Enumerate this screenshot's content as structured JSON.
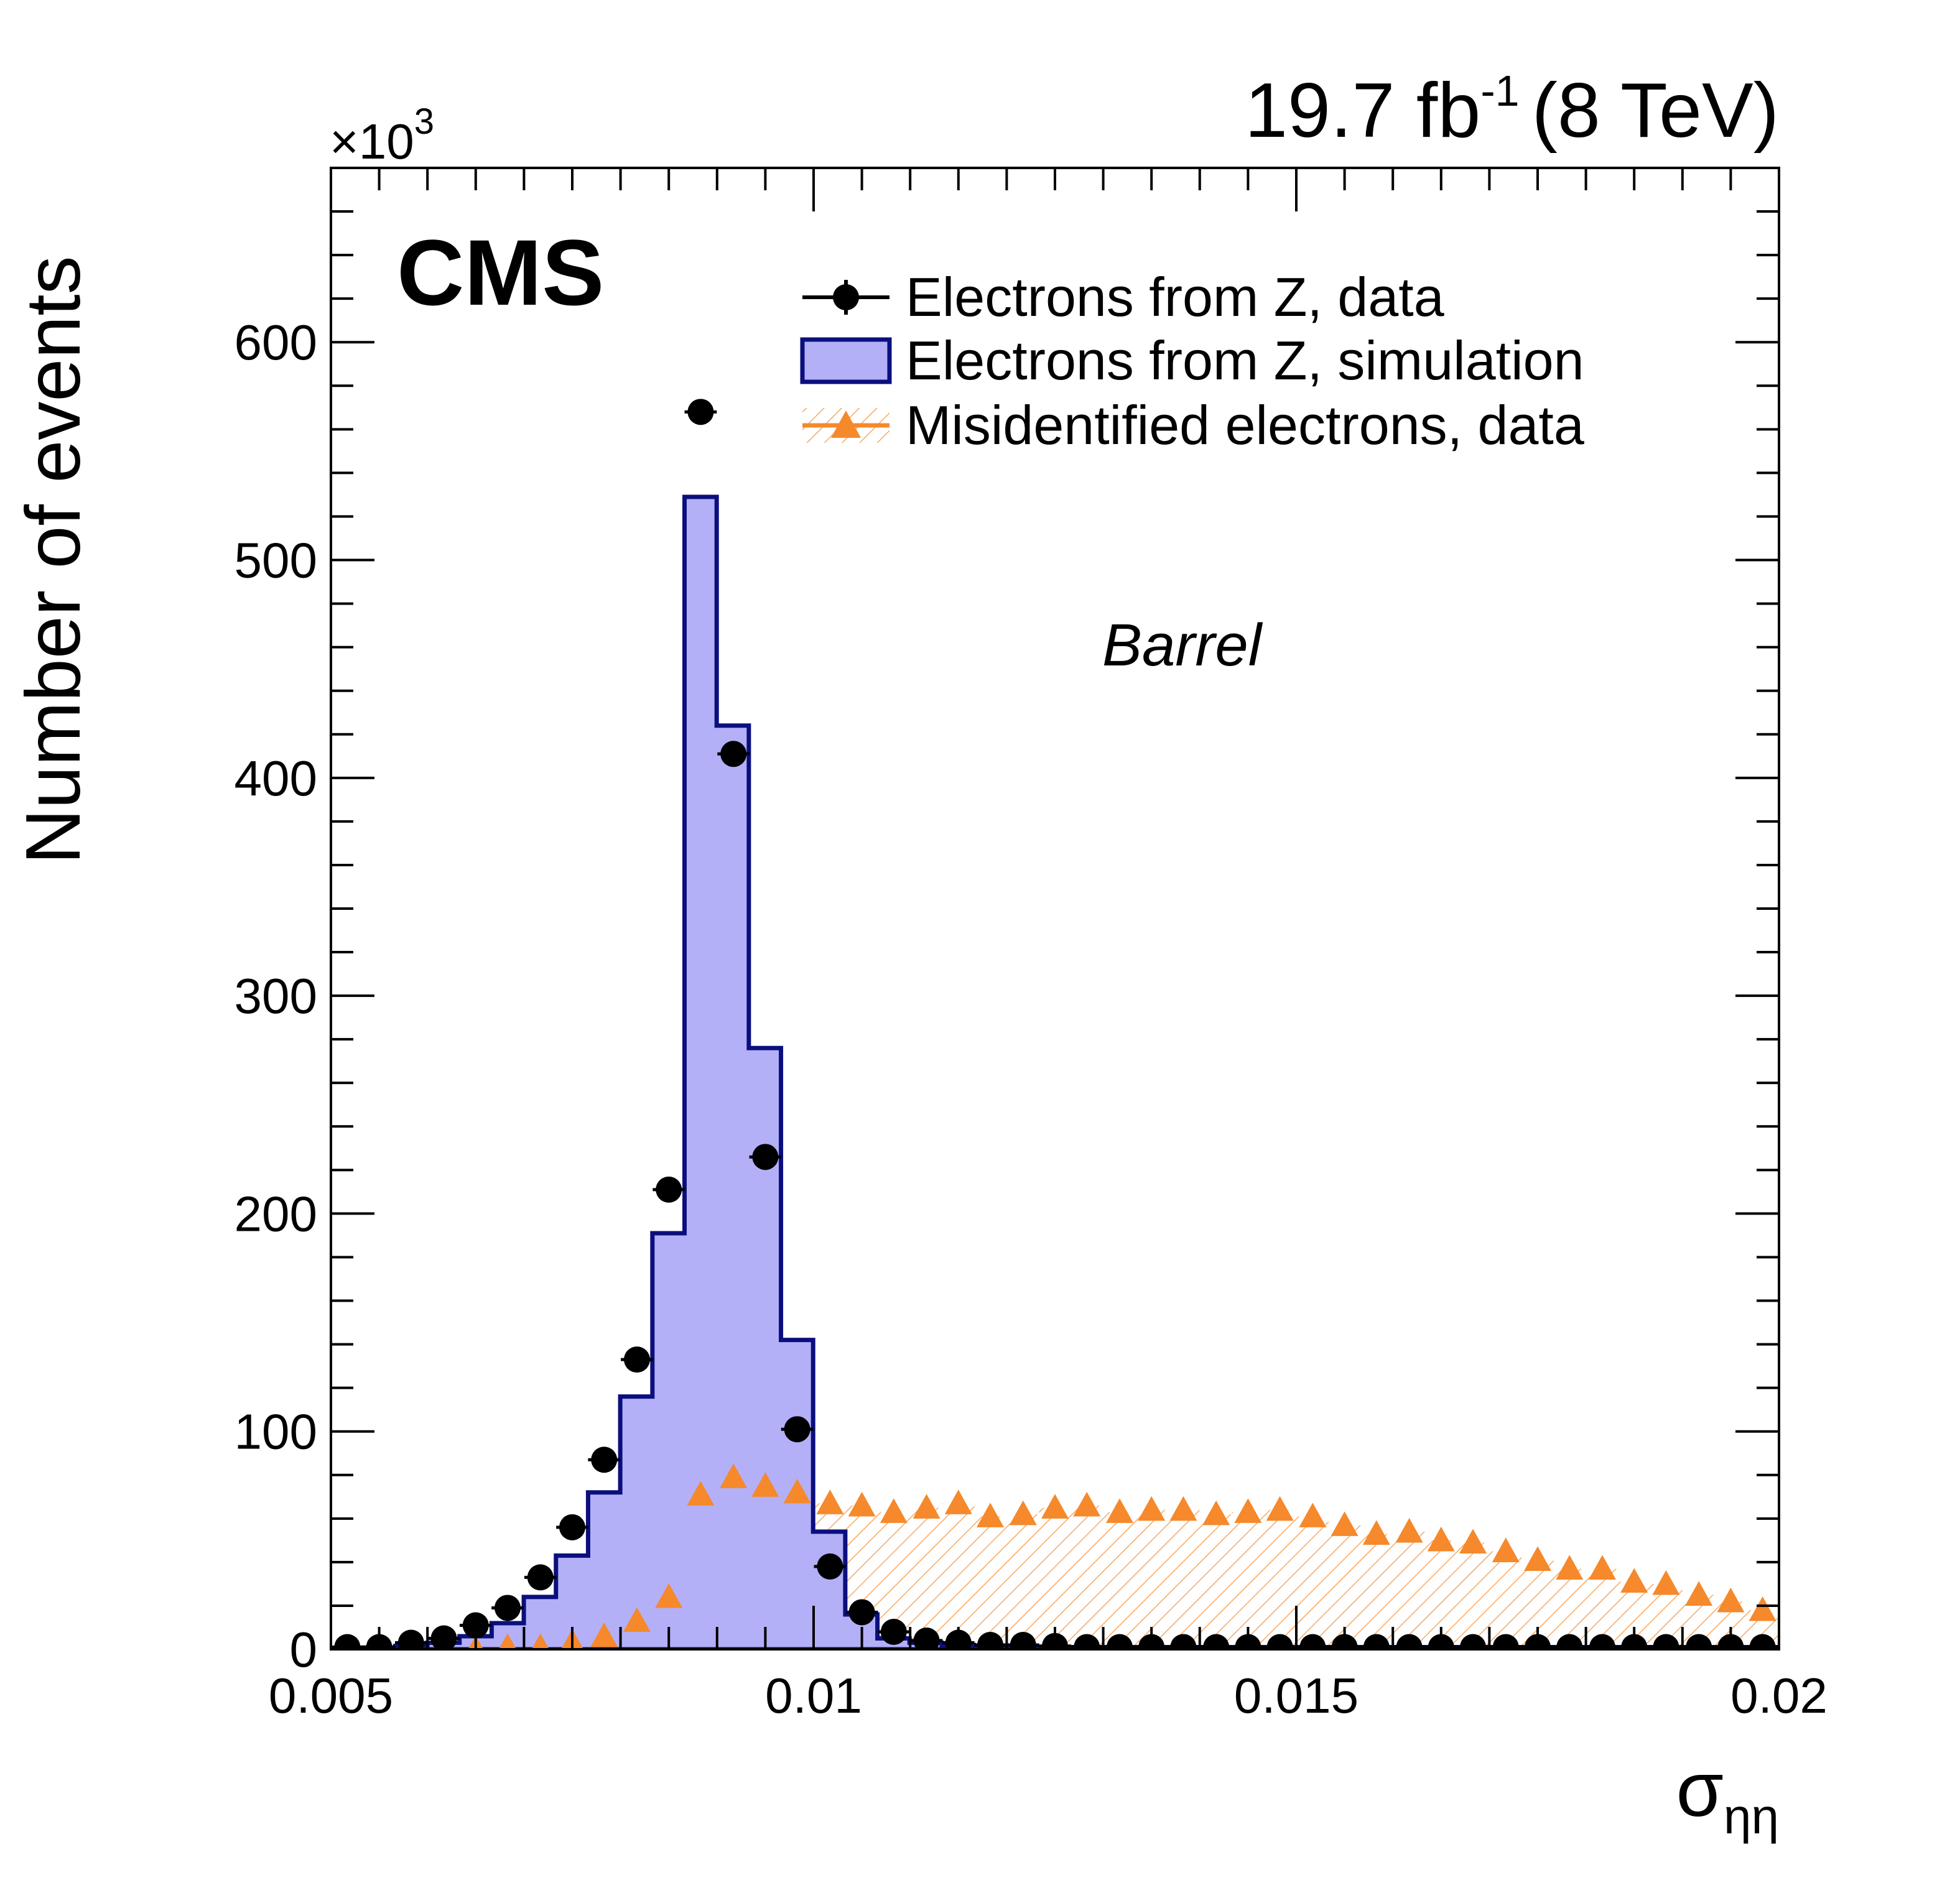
{
  "chart_data": {
    "type": "histogram",
    "experiment": "CMS",
    "luminosity_label": "19.7 fb",
    "luminosity_exponent": "-1",
    "energy_label": "(8 TeV)",
    "region_label": "Barrel",
    "xlabel_symbol": "σ",
    "xlabel_subscript": "ηη",
    "ylabel": "Number of events",
    "y_multiplier_base": "×10",
    "y_multiplier_exponent": "3",
    "xlim": [
      0.005,
      0.02
    ],
    "ylim": [
      0,
      680
    ],
    "x_ticks": [
      {
        "value": 0.005,
        "label": "0.005"
      },
      {
        "value": 0.01,
        "label": "0.01"
      },
      {
        "value": 0.015,
        "label": "0.015"
      },
      {
        "value": 0.02,
        "label": "0.02"
      }
    ],
    "y_ticks": [
      {
        "value": 0,
        "label": "0"
      },
      {
        "value": 100,
        "label": "100"
      },
      {
        "value": 200,
        "label": "200"
      },
      {
        "value": 300,
        "label": "300"
      },
      {
        "value": 400,
        "label": "400"
      },
      {
        "value": 500,
        "label": "500"
      },
      {
        "value": 600,
        "label": "600"
      }
    ],
    "bin_width": 0.000333,
    "series": [
      {
        "name": "Electrons from Z, data",
        "kind": "points",
        "marker": "circle",
        "color": "#000000",
        "x": [
          0.00517,
          0.0055,
          0.00583,
          0.00617,
          0.0065,
          0.00683,
          0.00717,
          0.0075,
          0.00783,
          0.00817,
          0.0085,
          0.00883,
          0.00917,
          0.0095,
          0.00983,
          0.01017,
          0.0105,
          0.01083,
          0.01117,
          0.0115,
          0.01183,
          0.01217,
          0.0125,
          0.01283,
          0.01317,
          0.0135,
          0.01383,
          0.01417,
          0.0145,
          0.01483,
          0.01517,
          0.0155,
          0.01583,
          0.01617,
          0.0165,
          0.01683,
          0.01717,
          0.0175,
          0.01783,
          0.01817,
          0.0185,
          0.01883,
          0.01917,
          0.0195,
          0.01983
        ],
        "y": [
          1,
          1,
          3,
          5,
          11,
          19,
          33,
          56,
          87,
          133,
          211,
          568,
          411,
          226,
          101,
          38,
          17,
          8,
          4,
          3,
          2,
          2,
          1.5,
          1,
          1,
          1,
          1,
          1,
          1,
          1,
          1,
          1,
          1,
          1,
          1,
          1,
          1,
          1,
          1,
          1,
          1,
          1,
          1,
          1,
          1
        ]
      },
      {
        "name": "Electrons from Z, simulation",
        "kind": "step-filled",
        "fill": "#b3b0f7",
        "stroke": "#0b0f7e",
        "bin_edges_start": 0.005,
        "values": [
          0.5,
          0.8,
          1.5,
          3,
          6,
          12,
          24,
          43,
          72,
          116,
          191,
          529,
          424,
          276,
          142,
          54,
          16,
          5,
          3,
          2,
          1.5,
          1,
          1,
          1,
          1,
          1,
          1,
          1,
          1,
          1,
          1,
          1,
          1,
          1,
          1,
          1,
          1,
          1,
          1,
          1,
          1,
          1,
          1,
          1,
          1
        ]
      },
      {
        "name": "Misidentified electrons, data",
        "kind": "points-hatched",
        "marker": "triangle",
        "color": "#f5892b",
        "x": [
          0.00517,
          0.0055,
          0.00583,
          0.00617,
          0.0065,
          0.00683,
          0.00717,
          0.0075,
          0.00783,
          0.00817,
          0.0085,
          0.00883,
          0.00917,
          0.0095,
          0.00983,
          0.01017,
          0.0105,
          0.01083,
          0.01117,
          0.0115,
          0.01183,
          0.01217,
          0.0125,
          0.01283,
          0.01317,
          0.0135,
          0.01383,
          0.01417,
          0.0145,
          0.01483,
          0.01517,
          0.0155,
          0.01583,
          0.01617,
          0.0165,
          0.01683,
          0.01717,
          0.0175,
          0.01783,
          0.01817,
          0.0185,
          0.01883,
          0.01917,
          0.0195,
          0.01983
        ],
        "y": [
          -3,
          -2,
          -2,
          0,
          0,
          1,
          1,
          3,
          6,
          13,
          24,
          71,
          79,
          75,
          72,
          67,
          66,
          63,
          65,
          67,
          61,
          62,
          65,
          66,
          63,
          64,
          64,
          62,
          63,
          64,
          61,
          57,
          53,
          54,
          50,
          49,
          45,
          41,
          37,
          37,
          31,
          30,
          25,
          22,
          18
        ]
      }
    ],
    "legend": [
      {
        "label": "Electrons from Z, data",
        "series": 0
      },
      {
        "label": "Electrons from Z, simulation",
        "series": 1
      },
      {
        "label": "Misidentified electrons, data",
        "series": 2
      }
    ],
    "legend_position": "top-right",
    "grid": false
  }
}
